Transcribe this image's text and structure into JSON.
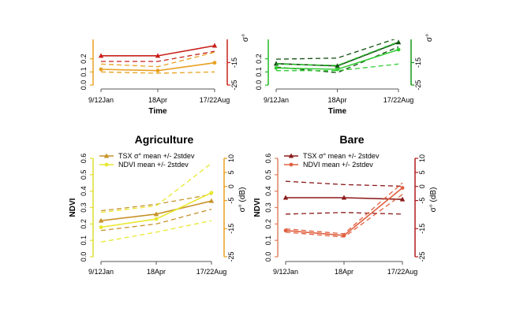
{
  "chart_data": [
    {
      "type": "line",
      "title": "",
      "xlabel": "Time",
      "categories": [
        "9/12Jan",
        "18Apr",
        "17/22Aug"
      ],
      "left_axis": {
        "label": "",
        "ylim": [
          0,
          0.6
        ],
        "ticks": [
          "0.0",
          "0.1",
          "0.2"
        ],
        "color": "#e8a020"
      },
      "right_axis": {
        "label": "σ°",
        "ylim": [
          -25,
          10
        ],
        "ticks": [
          "-25",
          "-15"
        ],
        "color": "#c8201a"
      },
      "series": [
        {
          "axis": "right",
          "style": "solid",
          "marker": "triangle",
          "color": "#c8201a",
          "values": [
            -12.0,
            -12.0,
            -7.5
          ]
        },
        {
          "axis": "right",
          "style": "dashed",
          "color": "#c8201a",
          "values": [
            -14.5,
            -14.5,
            -10.0
          ]
        },
        {
          "axis": "left",
          "style": "solid",
          "marker": "dot",
          "color": "#e8a020",
          "values": [
            0.12,
            0.11,
            0.17
          ]
        },
        {
          "axis": "left",
          "style": "dashed",
          "color": "#e8a020",
          "values": [
            0.16,
            0.14,
            0.25
          ]
        },
        {
          "axis": "left",
          "style": "dashed",
          "color": "#e8a020",
          "values": [
            0.1,
            0.09,
            0.1
          ]
        }
      ]
    },
    {
      "type": "line",
      "title": "",
      "xlabel": "Time",
      "categories": [
        "9/12Jan",
        "18Apr",
        "17/22Aug"
      ],
      "left_axis": {
        "label": "",
        "ylim": [
          0,
          0.6
        ],
        "ticks": [
          "0.0",
          "0.1",
          "0.2"
        ],
        "color": "#22bb22"
      },
      "right_axis": {
        "label": "σ°",
        "ylim": [
          -25,
          10
        ],
        "ticks": [
          "-25",
          "-15"
        ],
        "color": "#119911"
      },
      "series": [
        {
          "axis": "right",
          "style": "solid",
          "marker": "triangle",
          "color": "#0e4d0e",
          "values": [
            -15.5,
            -16.5,
            -6.0
          ]
        },
        {
          "axis": "right",
          "style": "dashed",
          "color": "#0e4d0e",
          "values": [
            -13.5,
            -13.0,
            -4.0
          ]
        },
        {
          "axis": "right",
          "style": "dashed",
          "color": "#0e4d0e",
          "values": [
            -17.0,
            -19.5,
            -8.0
          ]
        },
        {
          "axis": "left",
          "style": "solid",
          "marker": "dot",
          "color": "#33cc33",
          "values": [
            0.13,
            0.12,
            0.27
          ]
        },
        {
          "axis": "left",
          "style": "dashed",
          "color": "#33cc33",
          "values": [
            0.16,
            0.15,
            0.33
          ]
        },
        {
          "axis": "left",
          "style": "dashed",
          "color": "#33cc33",
          "values": [
            0.11,
            0.11,
            0.16
          ]
        }
      ]
    },
    {
      "type": "line",
      "title": "Agriculture",
      "xlabel": "",
      "categories": [
        "9/12Jan",
        "18Apr",
        "17/22Aug"
      ],
      "left_axis": {
        "label": "NDVI",
        "ylim": [
          0,
          0.6
        ],
        "ticks": [
          "0.0",
          "0.1",
          "0.2",
          "0.3",
          "0.4",
          "0.5",
          "0.6"
        ],
        "color": "#dede30"
      },
      "right_axis": {
        "label": "σ° (dB)",
        "ylim": [
          -25,
          10
        ],
        "ticks": [
          "-25",
          "-15",
          "-5",
          "0",
          "5",
          "10"
        ],
        "color": "#e8a020"
      },
      "legend": {
        "position": "top-left",
        "entries": [
          "TSX σ° mean +/- 2stdev",
          "NDVI mean +/- 2stdev"
        ],
        "colors": [
          "#c8932a",
          "#e8e830"
        ]
      },
      "series": [
        {
          "name": "TSX σ° mean +/- 2stdev",
          "axis": "left",
          "style": "solid",
          "marker": "triangle",
          "color": "#c8932a",
          "values": [
            0.22,
            0.26,
            0.34
          ]
        },
        {
          "axis": "left",
          "style": "dashed",
          "color": "#c8932a",
          "values": [
            0.28,
            0.32,
            0.38
          ]
        },
        {
          "axis": "left",
          "style": "dashed",
          "color": "#c8932a",
          "values": [
            0.16,
            0.2,
            0.29
          ]
        },
        {
          "name": "NDVI mean +/- 2stdev",
          "axis": "left",
          "style": "solid",
          "marker": "dot",
          "color": "#e8e830",
          "values": [
            0.18,
            0.23,
            0.39
          ]
        },
        {
          "axis": "left",
          "style": "dashed",
          "color": "#e8e830",
          "values": [
            0.27,
            0.31,
            0.57
          ]
        },
        {
          "axis": "left",
          "style": "dashed",
          "color": "#e8e830",
          "values": [
            0.09,
            0.15,
            0.22
          ]
        }
      ]
    },
    {
      "type": "line",
      "title": "Bare",
      "xlabel": "",
      "categories": [
        "9/12Jan",
        "18Apr",
        "17/22Aug"
      ],
      "left_axis": {
        "label": "NDVI",
        "ylim": [
          0,
          0.6
        ],
        "ticks": [
          "0.0",
          "0.1",
          "0.2",
          "0.3",
          "0.4",
          "0.5",
          "0.6"
        ],
        "color": "#e08060"
      },
      "right_axis": {
        "label": "σ° (dB)",
        "ylim": [
          -25,
          10
        ],
        "ticks": [
          "-25",
          "-15",
          "-5",
          "0",
          "5",
          "10"
        ],
        "color": "#b01c1c"
      },
      "legend": {
        "position": "top-left",
        "entries": [
          "TSX σ° mean +/- 2stdev",
          "NDVI mean +/- 2stdev"
        ],
        "colors": [
          "#8b1a1a",
          "#e06040"
        ]
      },
      "series": [
        {
          "name": "TSX σ° mean +/- 2stdev",
          "axis": "left",
          "style": "solid",
          "marker": "triangle",
          "color": "#8b1a1a",
          "values": [
            0.36,
            0.36,
            0.35
          ]
        },
        {
          "axis": "left",
          "style": "dashed",
          "color": "#8b1a1a",
          "values": [
            0.46,
            0.44,
            0.43
          ]
        },
        {
          "axis": "left",
          "style": "dashed",
          "color": "#8b1a1a",
          "values": [
            0.26,
            0.27,
            0.26
          ]
        },
        {
          "name": "NDVI mean +/- 2stdev",
          "axis": "left",
          "style": "solid",
          "marker": "dot",
          "color": "#e06040",
          "values": [
            0.16,
            0.13,
            0.42
          ]
        },
        {
          "axis": "left",
          "style": "dashed",
          "color": "#e06040",
          "values": [
            0.17,
            0.14,
            0.45
          ]
        },
        {
          "axis": "left",
          "style": "dashed",
          "color": "#e06040",
          "values": [
            0.15,
            0.12,
            0.38
          ]
        }
      ]
    }
  ]
}
